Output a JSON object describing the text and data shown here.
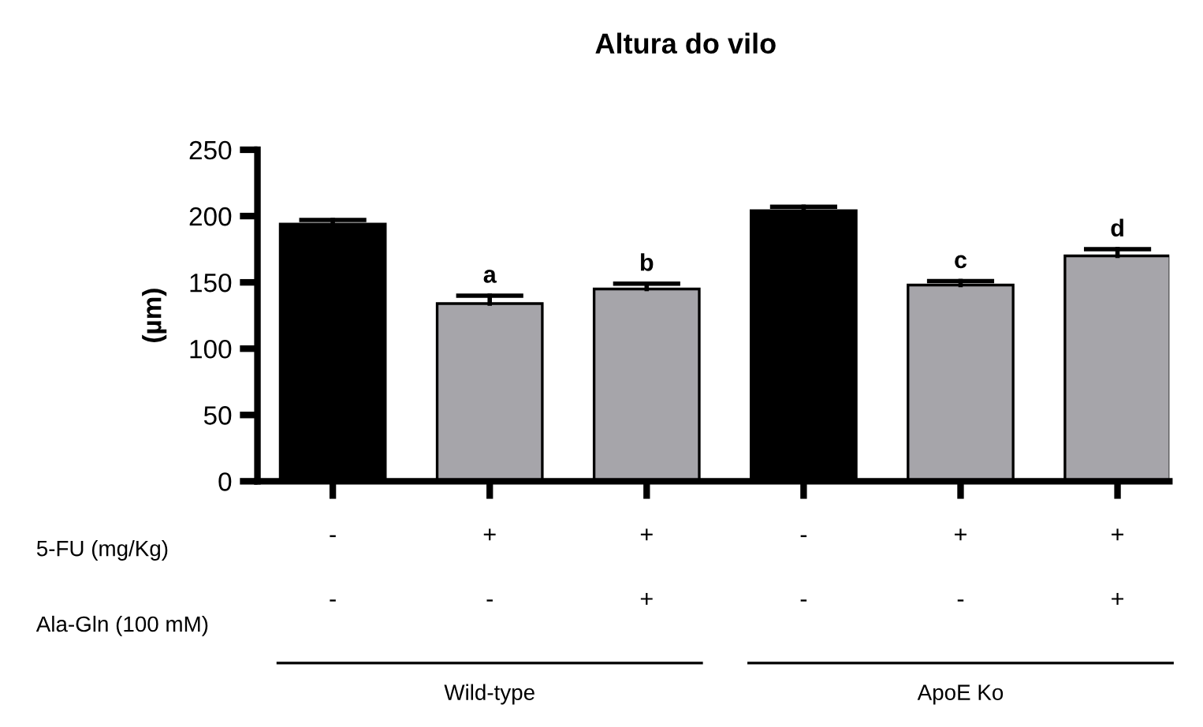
{
  "chart_data": {
    "type": "bar",
    "title": "Altura do vilo",
    "ylabel": "(µm)",
    "categories": [
      "-\n-",
      "+\n-",
      "+\n+",
      "-\n-",
      "+\n-",
      "+\n+"
    ],
    "values": [
      194,
      134,
      145,
      204,
      148,
      170
    ],
    "colors": [
      "#000000",
      "#a6a5aa",
      "#a6a5aa",
      "#000000",
      "#a6a5aa",
      "#a6a5aa"
    ],
    "errors": [
      [
        194,
        197
      ],
      [
        134,
        140
      ],
      [
        145,
        149
      ],
      [
        204,
        207
      ],
      [
        148,
        151
      ],
      [
        170,
        175
      ]
    ],
    "value_labels": [
      null,
      "a",
      "b",
      null,
      "c",
      "d"
    ],
    "annotations": [
      "5-FU (mg/Kg)",
      "Ala-Gln (100 mM)",
      "Wild-type",
      "ApoE Ko"
    ],
    "ylim": [
      0,
      250
    ],
    "yticks": [
      0,
      50,
      100,
      150,
      200,
      250
    ],
    "grid": false,
    "legend": false
  }
}
